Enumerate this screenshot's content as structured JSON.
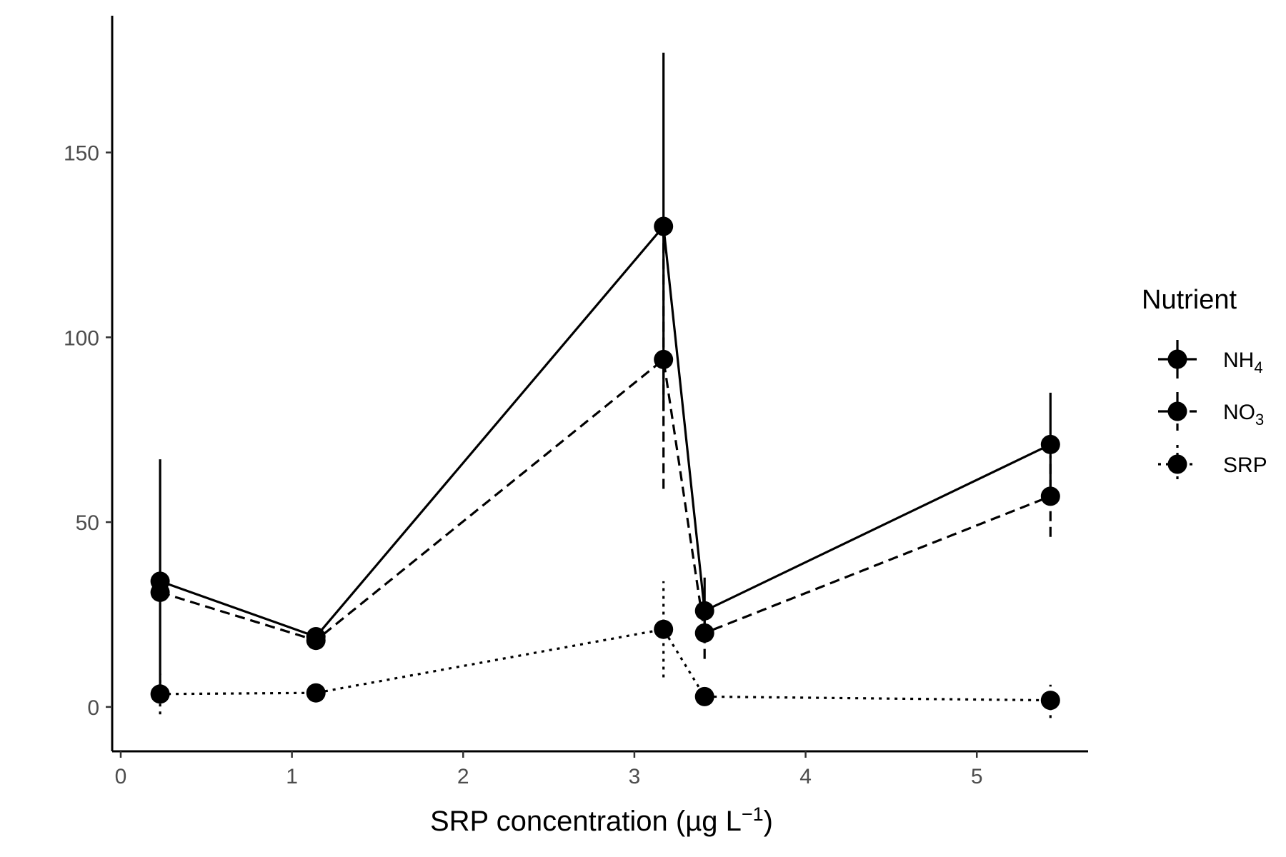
{
  "chart_data": {
    "type": "line",
    "xlabel": {
      "prefix": "SRP concentration (µg L",
      "superscript": "−1",
      "suffix": ")"
    },
    "ylabel": "",
    "xlim": [
      -0.05,
      5.65
    ],
    "ylim": [
      -12,
      187
    ],
    "xticks": [
      0,
      1,
      2,
      3,
      4,
      5
    ],
    "yticks": [
      0,
      50,
      100,
      150
    ],
    "grid": false,
    "legend": {
      "title": "Nutrient",
      "placement": "right",
      "entries": [
        {
          "series": "NH4",
          "base": "NH",
          "sub": "4"
        },
        {
          "series": "NO3",
          "base": "NO",
          "sub": "3"
        },
        {
          "series": "SRP",
          "base": "SRP",
          "sub": ""
        }
      ]
    },
    "x": [
      0.23,
      1.14,
      3.17,
      3.41,
      5.43
    ],
    "series": [
      {
        "name": "NH4",
        "line_style": "solid",
        "values": [
          34,
          19,
          130,
          26,
          71
        ],
        "error_low": [
          3,
          16,
          80,
          18,
          57
        ],
        "error_high": [
          67,
          21,
          177,
          35,
          85
        ]
      },
      {
        "name": "NO3",
        "line_style": "dashed",
        "values": [
          31,
          18,
          94,
          20,
          57
        ],
        "error_low": [
          29,
          16,
          59,
          13,
          46
        ],
        "error_high": [
          33,
          20,
          128,
          27,
          68
        ]
      },
      {
        "name": "SRP",
        "line_style": "dotted",
        "values": [
          3.5,
          3.8,
          21,
          2.8,
          1.8
        ],
        "error_low": [
          -2,
          3.0,
          8,
          1.5,
          -3
        ],
        "error_high": [
          9,
          4.6,
          34,
          4.2,
          6
        ]
      }
    ],
    "colors": {
      "line": "#000000",
      "point": "#000000",
      "axis": "#000000",
      "tick_text": "#4d4d4d"
    }
  }
}
